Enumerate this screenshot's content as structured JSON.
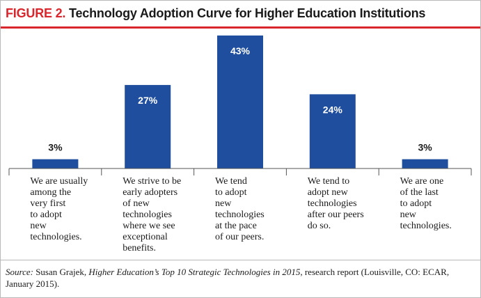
{
  "title": {
    "figure_label": "FIGURE 2.",
    "text": "Technology Adoption Curve for Higher Education Institutions"
  },
  "chart_data": {
    "type": "bar",
    "categories": [
      "We are usually among the very first to adopt new technologies.",
      "We strive to be early adopters of new technologies where we see exceptional benefits.",
      "We tend to adopt new technologies at the pace of our peers.",
      "We tend to adopt new technologies after our peers do so.",
      "We are one of the last to adopt new technologies."
    ],
    "category_lines": [
      [
        "We are usually",
        "among the",
        "very first",
        "to adopt",
        "new",
        "technologies."
      ],
      [
        "We strive to be",
        "early adopters",
        "of  new",
        "technologies",
        "where we see",
        "exceptional",
        "benefits."
      ],
      [
        "We tend",
        "to adopt",
        "new",
        "technologies",
        "at the pace",
        "of our peers."
      ],
      [
        "We tend to",
        "adopt new",
        "technologies",
        "after our peers",
        "do so."
      ],
      [
        "We are one",
        "of the last",
        "to adopt",
        "new",
        "technologies."
      ]
    ],
    "values": [
      3,
      27,
      43,
      24,
      3
    ],
    "value_labels": [
      "3%",
      "27%",
      "43%",
      "24%",
      "3%"
    ],
    "unit": "%",
    "ylim": [
      0,
      43
    ],
    "bar_color": "#1f4e9e",
    "grid": false,
    "legend": "none"
  },
  "source": {
    "label": "Source:",
    "author": "Susan Grajek,",
    "work": "Higher Education’s Top 10 Strategic Technologies in 2015",
    "rest": ", research report (Louisville, CO: ECAR, January 2015)."
  },
  "colors": {
    "accent": "#d8262c",
    "bar": "#1f4e9e"
  }
}
